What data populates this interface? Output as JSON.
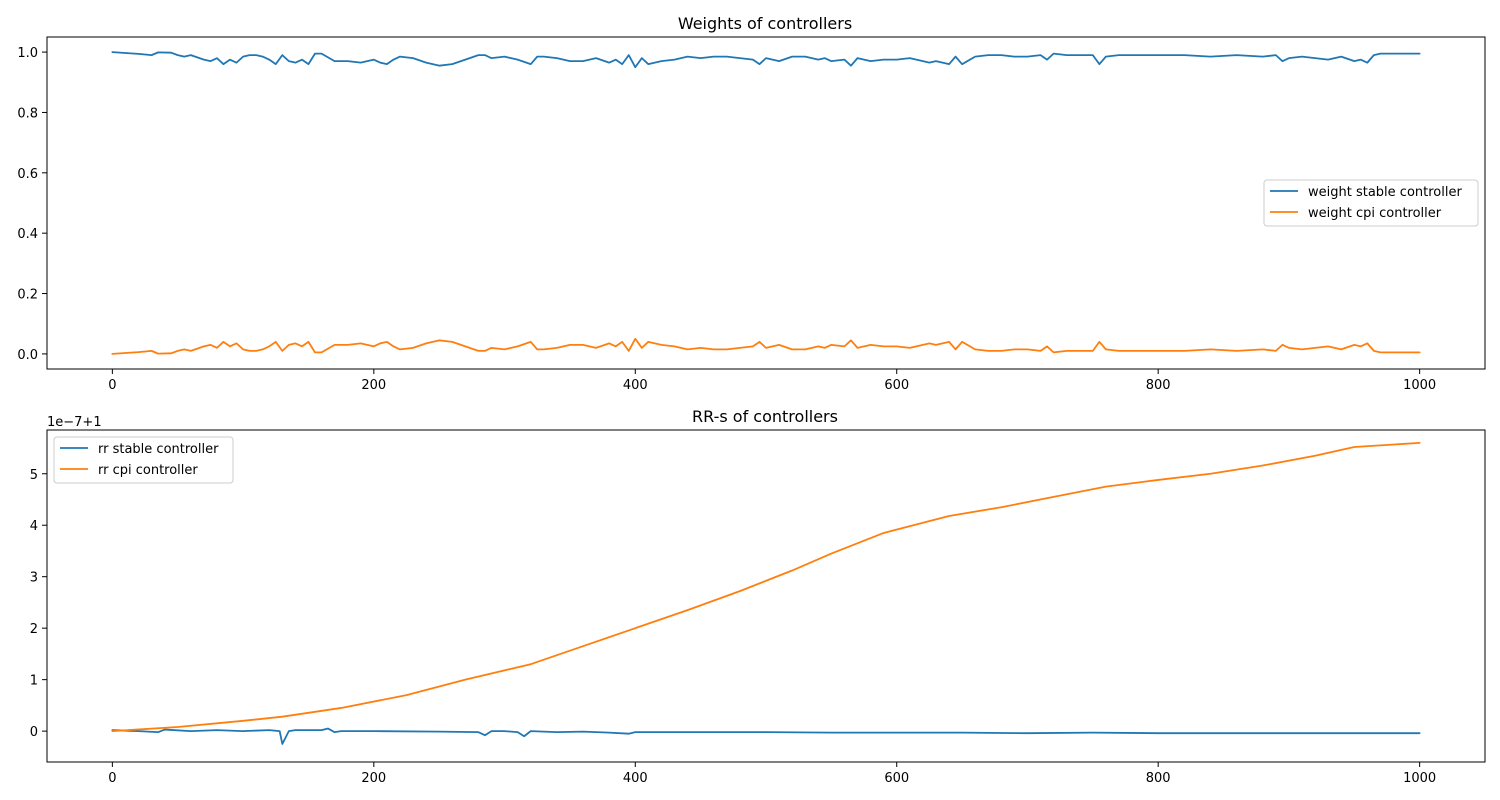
{
  "chart_data": [
    {
      "type": "line",
      "title": "Weights of controllers",
      "xlabel": "",
      "ylabel": "",
      "xlim": [
        -50,
        1050
      ],
      "ylim": [
        -0.05,
        1.05
      ],
      "xticks": [
        0,
        200,
        400,
        600,
        800,
        1000
      ],
      "xtick_labels": [
        "0",
        "200",
        "400",
        "600",
        "800",
        "1000"
      ],
      "yticks": [
        0.0,
        0.2,
        0.4,
        0.6,
        0.8,
        1.0
      ],
      "ytick_labels": [
        "0.0",
        "0.2",
        "0.4",
        "0.6",
        "0.8",
        "1.0"
      ],
      "grid": false,
      "legend_position": "center-right",
      "series": [
        {
          "name": "weight stable controller",
          "color": "#1f77b4",
          "x": [
            0,
            10,
            20,
            30,
            35,
            45,
            50,
            55,
            60,
            70,
            75,
            80,
            85,
            90,
            95,
            100,
            105,
            110,
            115,
            120,
            125,
            130,
            135,
            140,
            145,
            150,
            155,
            160,
            170,
            180,
            190,
            200,
            205,
            210,
            215,
            220,
            230,
            240,
            250,
            260,
            270,
            280,
            285,
            290,
            300,
            310,
            320,
            325,
            330,
            340,
            350,
            360,
            370,
            380,
            385,
            390,
            395,
            400,
            405,
            410,
            420,
            430,
            440,
            450,
            460,
            470,
            480,
            490,
            495,
            500,
            510,
            520,
            530,
            540,
            545,
            550,
            560,
            565,
            570,
            580,
            590,
            600,
            610,
            620,
            625,
            630,
            640,
            645,
            650,
            660,
            670,
            680,
            690,
            700,
            710,
            715,
            720,
            730,
            740,
            750,
            755,
            760,
            770,
            780,
            790,
            800,
            820,
            840,
            860,
            880,
            890,
            895,
            900,
            910,
            920,
            930,
            940,
            950,
            955,
            960,
            965,
            970,
            980,
            990,
            1000
          ],
          "values": [
            1.0,
            0.997,
            0.994,
            0.99,
            0.999,
            0.998,
            0.99,
            0.985,
            0.99,
            0.975,
            0.97,
            0.98,
            0.96,
            0.975,
            0.965,
            0.985,
            0.99,
            0.99,
            0.985,
            0.975,
            0.96,
            0.99,
            0.97,
            0.965,
            0.975,
            0.96,
            0.995,
            0.995,
            0.97,
            0.97,
            0.965,
            0.975,
            0.965,
            0.96,
            0.975,
            0.985,
            0.98,
            0.965,
            0.955,
            0.96,
            0.975,
            0.99,
            0.99,
            0.98,
            0.985,
            0.975,
            0.96,
            0.985,
            0.985,
            0.98,
            0.97,
            0.97,
            0.98,
            0.965,
            0.975,
            0.96,
            0.99,
            0.95,
            0.98,
            0.96,
            0.97,
            0.975,
            0.985,
            0.98,
            0.985,
            0.985,
            0.98,
            0.975,
            0.96,
            0.98,
            0.97,
            0.985,
            0.985,
            0.975,
            0.98,
            0.97,
            0.975,
            0.955,
            0.98,
            0.97,
            0.975,
            0.975,
            0.98,
            0.97,
            0.965,
            0.97,
            0.96,
            0.985,
            0.96,
            0.985,
            0.99,
            0.99,
            0.985,
            0.985,
            0.99,
            0.975,
            0.995,
            0.99,
            0.99,
            0.99,
            0.96,
            0.985,
            0.99,
            0.99,
            0.99,
            0.99,
            0.99,
            0.985,
            0.99,
            0.985,
            0.99,
            0.97,
            0.98,
            0.985,
            0.98,
            0.975,
            0.985,
            0.97,
            0.975,
            0.965,
            0.99,
            0.995,
            0.995,
            0.995,
            0.995
          ]
        },
        {
          "name": "weight cpi controller",
          "color": "#ff7f0e",
          "x": [
            0,
            10,
            20,
            30,
            35,
            45,
            50,
            55,
            60,
            70,
            75,
            80,
            85,
            90,
            95,
            100,
            105,
            110,
            115,
            120,
            125,
            130,
            135,
            140,
            145,
            150,
            155,
            160,
            170,
            180,
            190,
            200,
            205,
            210,
            215,
            220,
            230,
            240,
            250,
            260,
            270,
            280,
            285,
            290,
            300,
            310,
            320,
            325,
            330,
            340,
            350,
            360,
            370,
            380,
            385,
            390,
            395,
            400,
            405,
            410,
            420,
            430,
            440,
            450,
            460,
            470,
            480,
            490,
            495,
            500,
            510,
            520,
            530,
            540,
            545,
            550,
            560,
            565,
            570,
            580,
            590,
            600,
            610,
            620,
            625,
            630,
            640,
            645,
            650,
            660,
            670,
            680,
            690,
            700,
            710,
            715,
            720,
            730,
            740,
            750,
            755,
            760,
            770,
            780,
            790,
            800,
            820,
            840,
            860,
            880,
            890,
            895,
            900,
            910,
            920,
            930,
            940,
            950,
            955,
            960,
            965,
            970,
            980,
            990,
            1000
          ],
          "values": [
            0.0,
            0.003,
            0.006,
            0.01,
            0.001,
            0.002,
            0.01,
            0.015,
            0.01,
            0.025,
            0.03,
            0.02,
            0.04,
            0.025,
            0.035,
            0.015,
            0.01,
            0.01,
            0.015,
            0.025,
            0.04,
            0.01,
            0.03,
            0.035,
            0.025,
            0.04,
            0.005,
            0.005,
            0.03,
            0.03,
            0.035,
            0.025,
            0.035,
            0.04,
            0.025,
            0.015,
            0.02,
            0.035,
            0.045,
            0.04,
            0.025,
            0.01,
            0.01,
            0.02,
            0.015,
            0.025,
            0.04,
            0.015,
            0.015,
            0.02,
            0.03,
            0.03,
            0.02,
            0.035,
            0.025,
            0.04,
            0.01,
            0.05,
            0.02,
            0.04,
            0.03,
            0.025,
            0.015,
            0.02,
            0.015,
            0.015,
            0.02,
            0.025,
            0.04,
            0.02,
            0.03,
            0.015,
            0.015,
            0.025,
            0.02,
            0.03,
            0.025,
            0.045,
            0.02,
            0.03,
            0.025,
            0.025,
            0.02,
            0.03,
            0.035,
            0.03,
            0.04,
            0.015,
            0.04,
            0.015,
            0.01,
            0.01,
            0.015,
            0.015,
            0.01,
            0.025,
            0.005,
            0.01,
            0.01,
            0.01,
            0.04,
            0.015,
            0.01,
            0.01,
            0.01,
            0.01,
            0.01,
            0.015,
            0.01,
            0.015,
            0.01,
            0.03,
            0.02,
            0.015,
            0.02,
            0.025,
            0.015,
            0.03,
            0.025,
            0.035,
            0.01,
            0.005,
            0.005,
            0.005,
            0.005
          ]
        }
      ]
    },
    {
      "type": "line",
      "title": "RR-s of controllers",
      "xlabel": "",
      "ylabel": "",
      "offset_text": "1e−7+1",
      "xlim": [
        -50,
        1050
      ],
      "ylim": [
        -0.6,
        5.85
      ],
      "xticks": [
        0,
        200,
        400,
        600,
        800,
        1000
      ],
      "xtick_labels": [
        "0",
        "200",
        "400",
        "600",
        "800",
        "1000"
      ],
      "yticks": [
        0,
        1,
        2,
        3,
        4,
        5
      ],
      "ytick_labels": [
        "0",
        "1",
        "2",
        "3",
        "4",
        "5"
      ],
      "grid": false,
      "legend_position": "upper-left",
      "series": [
        {
          "name": "rr stable controller",
          "color": "#1f77b4",
          "x": [
            0,
            20,
            35,
            40,
            60,
            80,
            100,
            120,
            128,
            130,
            135,
            140,
            160,
            165,
            170,
            175,
            200,
            250,
            280,
            285,
            290,
            300,
            310,
            315,
            320,
            340,
            360,
            380,
            395,
            400,
            410,
            450,
            500,
            550,
            600,
            650,
            700,
            750,
            800,
            850,
            900,
            950,
            1000
          ],
          "values": [
            0.02,
            0.0,
            -0.02,
            0.03,
            0.0,
            0.02,
            0.0,
            0.02,
            0.0,
            -0.25,
            0.0,
            0.02,
            0.02,
            0.05,
            -0.02,
            0.0,
            0.0,
            -0.01,
            -0.02,
            -0.08,
            0.0,
            0.0,
            -0.02,
            -0.1,
            0.0,
            -0.02,
            -0.01,
            -0.03,
            -0.05,
            -0.02,
            -0.02,
            -0.02,
            -0.02,
            -0.03,
            -0.03,
            -0.03,
            -0.04,
            -0.03,
            -0.04,
            -0.04,
            -0.04,
            -0.04,
            -0.04
          ]
        },
        {
          "name": "rr cpi controller",
          "color": "#ff7f0e",
          "x": [
            0,
            50,
            100,
            130,
            175,
            225,
            270,
            320,
            360,
            400,
            440,
            480,
            520,
            550,
            590,
            640,
            680,
            720,
            760,
            800,
            840,
            880,
            920,
            950,
            1000
          ],
          "values": [
            0.0,
            0.08,
            0.2,
            0.28,
            0.45,
            0.7,
            1.0,
            1.3,
            1.65,
            2.0,
            2.35,
            2.72,
            3.12,
            3.45,
            3.85,
            4.18,
            4.35,
            4.55,
            4.75,
            4.88,
            5.0,
            5.16,
            5.35,
            5.52,
            5.6
          ]
        }
      ]
    }
  ]
}
